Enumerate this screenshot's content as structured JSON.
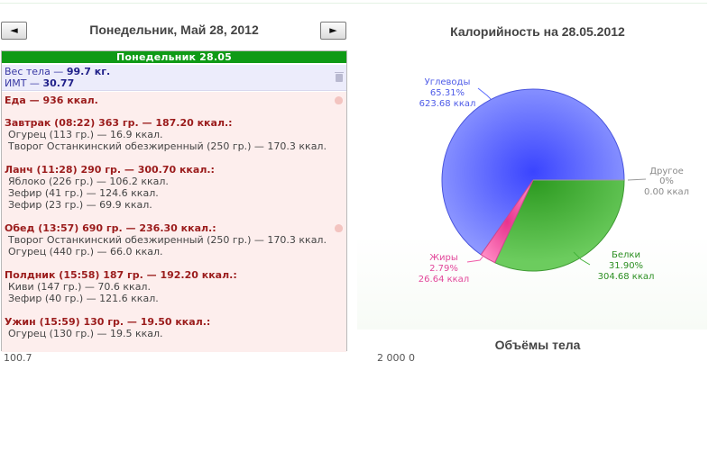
{
  "nav": {
    "prev_icon": "◄",
    "next_icon": "►",
    "title": "Понедельник, Май 28, 2012"
  },
  "panel": {
    "header": "Понедельник 28.05",
    "weight_label": "Вес тела — ",
    "weight_value": "99.7 кг.",
    "bmi_label": "ИМТ — ",
    "bmi_value": "30.77",
    "food_label": "Еда — ",
    "food_value": "936 ккал.",
    "meals": [
      {
        "title": "Завтрак (08:22) 363 гр. — 187.20 ккал.:",
        "items": [
          "Огурец (113 гр.) — 16.9 ккал.",
          "Творог Останкинский обезжиренный (250 гр.) — 170.3 ккал."
        ]
      },
      {
        "title": "Ланч (11:28) 290 гр. — 300.70 ккал.:",
        "items": [
          "Яблоко (226 гр.) — 106.2 ккал.",
          "Зефир (41 гр.) — 124.6 ккал.",
          "Зефир (23 гр.) — 69.9 ккал."
        ]
      },
      {
        "title": "Обед (13:57) 690 гр. — 236.30 ккал.:",
        "items": [
          "Творог Останкинский обезжиренный (250 гр.) — 170.3 ккал.",
          "Огурец (440 гр.) — 66.0 ккал."
        ]
      },
      {
        "title": "Полдник (15:58) 187 гр. — 192.20 ккал.:",
        "items": [
          "Киви (147 гр.) — 70.6 ккал.",
          "Зефир (40 гр.) — 121.6 ккал."
        ]
      },
      {
        "title": "Ужин (15:59) 130 гр. — 19.50 ккал.:",
        "items": [
          "Огурец (130 гр.) — 19.5 ккал."
        ]
      }
    ]
  },
  "chart_data": {
    "type": "pie",
    "title": "Калорийность на 28.05.2012",
    "slices": [
      {
        "name": "Углеводы",
        "percent": "65.31%",
        "value": 65.31,
        "kcal": "623.68 ккал",
        "color": "#5b6cff"
      },
      {
        "name": "Другое",
        "percent": "0%",
        "value": 0,
        "kcal": "0.00 ккал",
        "color": "#9a9a9a"
      },
      {
        "name": "Белки",
        "percent": "31.90%",
        "value": 31.9,
        "kcal": "304.68 ккал",
        "color": "#44b23a"
      },
      {
        "name": "Жиры",
        "percent": "2.79%",
        "value": 2.79,
        "kcal": "26.64 ккал",
        "color": "#f05aa8"
      }
    ]
  },
  "body_section": {
    "title": "Объёмы тела"
  },
  "clipped": {
    "left": "100.7",
    "right": "2 000 0"
  },
  "icons": {
    "trash": "trash-icon",
    "apple": "apple-icon"
  }
}
